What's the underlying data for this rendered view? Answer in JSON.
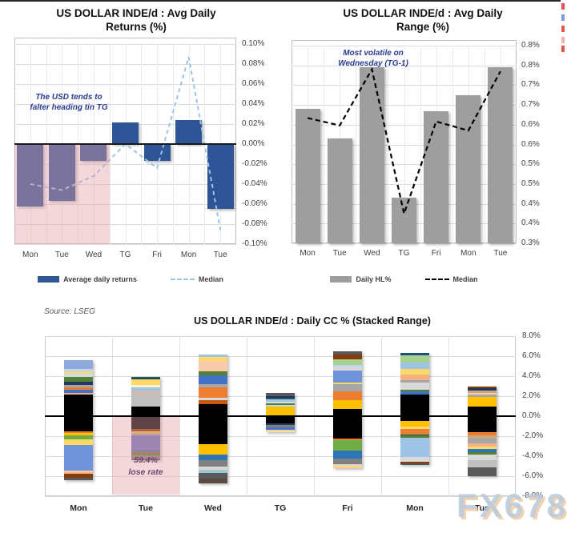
{
  "page": {
    "source_note": "Source: LSEG",
    "watermark": "FX678"
  },
  "chart_data": [
    {
      "id": "avg-daily-returns",
      "type": "bar",
      "title": "US DOLLAR INDE/d : Avg Daily Returns (%)",
      "title_lines": [
        "US DOLLAR INDE/d : Avg Daily",
        "Returns (%)"
      ],
      "annotation_lines": [
        "The USD tends to",
        "falter heading tin TG"
      ],
      "categories": [
        "Mon",
        "Tue",
        "Wed",
        "TG",
        "Fri",
        "Mon",
        "Tue"
      ],
      "series": [
        {
          "name": "Average daily returns",
          "type": "bar",
          "values": [
            -0.062,
            -0.057,
            -0.017,
            0.022,
            -0.017,
            0.024,
            -0.065
          ]
        },
        {
          "name": "Median",
          "type": "line",
          "values": [
            -0.04,
            -0.046,
            -0.032,
            0.0,
            -0.024,
            0.087,
            -0.086
          ]
        }
      ],
      "ylim": [
        -0.1,
        0.1
      ],
      "ytick_labels": [
        "0.10%",
        "0.08%",
        "0.06%",
        "0.04%",
        "0.02%",
        "0.00%",
        "-0.02%",
        "-0.04%",
        "-0.06%",
        "-0.08%",
        "-0.10%"
      ],
      "colors": {
        "bar": "#2F5597",
        "line": "#9DC3E6",
        "highlight": "#F2DCDB",
        "annotation": "#2B3C92"
      },
      "highlight_region": {
        "categories": [
          "Mon",
          "Tue",
          "Wed"
        ],
        "below_zero": true
      },
      "legend_position": "bottom"
    },
    {
      "id": "avg-daily-range",
      "type": "bar",
      "title": "US DOLLAR INDE/d : Avg Daily Range (%)",
      "title_lines": [
        "US DOLLAR INDE/d : Avg Daily",
        "Range (%)"
      ],
      "annotation_lines": [
        "Most volatile on",
        "Wednesday (TG-1)"
      ],
      "categories": [
        "Mon",
        "Tue",
        "Wed",
        "TG",
        "Fri",
        "Mon",
        "Tue"
      ],
      "series": [
        {
          "name": "Daily HL%",
          "type": "bar",
          "values": [
            0.64,
            0.565,
            0.745,
            0.415,
            0.635,
            0.675,
            0.745
          ]
        },
        {
          "name": "Median",
          "type": "line",
          "values": [
            0.617,
            0.598,
            0.74,
            0.375,
            0.608,
            0.585,
            0.735
          ]
        }
      ],
      "ylim": [
        0.3,
        0.8
      ],
      "ytick_labels": [
        "0.8%",
        "0.8%",
        "0.7%",
        "0.7%",
        "0.6%",
        "0.6%",
        "0.5%",
        "0.5%",
        "0.4%",
        "0.4%",
        "0.3%"
      ],
      "colors": {
        "bar": "#9E9E9E",
        "line": "#000000",
        "annotation": "#2B3C92"
      },
      "legend_position": "bottom"
    },
    {
      "id": "daily-cc-stacked",
      "type": "stacked-bar",
      "title": "US DOLLAR INDE/d : Daily CC % (Stacked Range)",
      "annotation_lines": [
        "59.4%",
        "lose rate"
      ],
      "categories": [
        "Mon",
        "Tue",
        "Wed",
        "TG",
        "Fri",
        "Mon",
        "Tue"
      ],
      "ylim": [
        -8,
        8
      ],
      "ytick_labels": [
        "8.0%",
        "6.0%",
        "4.0%",
        "2.0%",
        "0.0%",
        "-2.0%",
        "-4.0%",
        "-6.0%",
        "-8.0%"
      ],
      "highlight": {
        "category": "Tue",
        "color": "#F2DCDB",
        "text_color": "#70486A"
      },
      "bars": [
        {
          "label": "Mon",
          "pos": [
            [
              "#8EA9DB",
              0.85
            ],
            [
              "#BDD7EE",
              0.25
            ],
            [
              "#FFD966",
              0.2
            ],
            [
              "#D9D9D9",
              0.35
            ],
            [
              "#548235",
              0.5
            ],
            [
              "#203864",
              0.3
            ],
            [
              "#A6A6A6",
              0.25
            ],
            [
              "#ED7D31",
              0.25
            ],
            [
              "#4472C4",
              0.3
            ],
            [
              "#F4B183",
              0.15
            ],
            [
              "#000000",
              2.2
            ]
          ],
          "neg": [
            [
              "#000000",
              1.5
            ],
            [
              "#ED7D31",
              0.2
            ],
            [
              "#FFC000",
              0.2
            ],
            [
              "#70AD47",
              0.45
            ],
            [
              "#FFD966",
              0.55
            ],
            [
              "#7094DB",
              2.5
            ],
            [
              "#F8CBAD",
              0.2
            ],
            [
              "#F4B183",
              0.15
            ],
            [
              "#843C0C",
              0.4
            ],
            [
              "#595959",
              0.25
            ]
          ]
        },
        {
          "label": "Tue",
          "pos": [
            [
              "#1F5C5C",
              0.15
            ],
            [
              "#203864",
              0.1
            ],
            [
              "#FFD966",
              0.55
            ],
            [
              "#FFF2CC",
              0.2
            ],
            [
              "#9DC3E6",
              0.45
            ],
            [
              "#F4B183",
              0.15
            ],
            [
              "#BFBFBF",
              1.3
            ],
            [
              "#000000",
              1.0
            ]
          ],
          "neg": [
            [
              "#000000",
              1.3
            ],
            [
              "#843C0C",
              0.25
            ],
            [
              "#FFC000",
              0.15
            ],
            [
              "#A6A6A6",
              0.2
            ],
            [
              "#6974B8",
              1.45
            ],
            [
              "#4472C4",
              0.2
            ],
            [
              "#846A45",
              0.2
            ],
            [
              "#548235",
              0.2
            ],
            [
              "#808080",
              0.25
            ],
            [
              "#595959",
              0.2
            ]
          ]
        },
        {
          "label": "Wed",
          "pos": [
            [
              "#9DC3E6",
              0.3
            ],
            [
              "#FFD966",
              0.4
            ],
            [
              "#F8CBAD",
              1.0
            ],
            [
              "#548235",
              0.45
            ],
            [
              "#4472C4",
              0.85
            ],
            [
              "#A6A6A6",
              0.35
            ],
            [
              "#ED7D31",
              1.0
            ],
            [
              "#D9D9D9",
              0.25
            ],
            [
              "#C55A11",
              0.4
            ],
            [
              "#000000",
              1.2
            ]
          ],
          "neg": [
            [
              "#000000",
              2.8
            ],
            [
              "#FFC000",
              1.0
            ],
            [
              "#2E75B6",
              0.6
            ],
            [
              "#808080",
              0.65
            ],
            [
              "#D9D9D9",
              0.3
            ],
            [
              "#A9D18E",
              0.1
            ],
            [
              "#9DC3E6",
              0.25
            ],
            [
              "#595959",
              0.5
            ],
            [
              "#5B4A42",
              0.5
            ]
          ]
        },
        {
          "label": "TG",
          "pos": [
            [
              "#595959",
              0.3
            ],
            [
              "#203864",
              0.2
            ],
            [
              "#2E7573",
              0.15
            ],
            [
              "#9DC3E6",
              0.2
            ],
            [
              "#D9D9D9",
              0.15
            ],
            [
              "#548235",
              0.15
            ],
            [
              "#BDD7EE",
              0.2
            ],
            [
              "#FFC000",
              0.95
            ]
          ],
          "neg": [
            [
              "#000000",
              0.7
            ],
            [
              "#203864",
              0.2
            ],
            [
              "#808080",
              0.2
            ],
            [
              "#4472C4",
              0.25
            ],
            [
              "#F8CBAD",
              0.15
            ],
            [
              "#FFE699",
              0.1
            ]
          ]
        },
        {
          "label": "Fri",
          "pos": [
            [
              "#595959",
              0.35
            ],
            [
              "#843C0C",
              0.5
            ],
            [
              "#A9D18E",
              0.5
            ],
            [
              "#BDD7EE",
              0.3
            ],
            [
              "#D9D9D9",
              0.3
            ],
            [
              "#7094DB",
              1.15
            ],
            [
              "#FFD966",
              0.2
            ],
            [
              "#A6A6A6",
              0.7
            ],
            [
              "#ED7D31",
              0.9
            ],
            [
              "#FFC000",
              0.9
            ],
            [
              "#000000",
              0.7
            ]
          ],
          "neg": [
            [
              "#000000",
              2.25
            ],
            [
              "#ED7D31",
              0.15
            ],
            [
              "#70AD47",
              1.0
            ],
            [
              "#2E75B6",
              0.85
            ],
            [
              "#808080",
              0.55
            ],
            [
              "#D9D9D9",
              0.15
            ],
            [
              "#FFD966",
              0.15
            ],
            [
              "#F8CBAD",
              0.1
            ]
          ]
        },
        {
          "label": "Mon",
          "pos": [
            [
              "#1F4E79",
              0.2
            ],
            [
              "#A9D18E",
              0.7
            ],
            [
              "#9DC3E6",
              0.7
            ],
            [
              "#FFD966",
              0.55
            ],
            [
              "#F4B183",
              0.55
            ],
            [
              "#A6A6A6",
              0.25
            ],
            [
              "#D9D9D9",
              0.7
            ],
            [
              "#548235",
              0.2
            ],
            [
              "#4472C4",
              0.25
            ],
            [
              "#000000",
              2.2
            ]
          ],
          "neg": [
            [
              "#000000",
              0.5
            ],
            [
              "#FFC000",
              0.55
            ],
            [
              "#FFD966",
              0.2
            ],
            [
              "#ED7D31",
              0.55
            ],
            [
              "#1F5C5C",
              0.15
            ],
            [
              "#548235",
              0.2
            ],
            [
              "#9DC3E6",
              1.9
            ],
            [
              "#D9D9D9",
              0.5
            ],
            [
              "#843C0C",
              0.2
            ],
            [
              "#595959",
              0.15
            ]
          ]
        },
        {
          "label": "Tue",
          "pos": [
            [
              "#843C0C",
              0.2
            ],
            [
              "#203864",
              0.2
            ],
            [
              "#C9A87C",
              0.25
            ],
            [
              "#F8CBAD",
              0.2
            ],
            [
              "#A6A6A6",
              0.25
            ],
            [
              "#FFC000",
              0.9
            ],
            [
              "#000000",
              1.0
            ]
          ],
          "neg": [
            [
              "#000000",
              1.6
            ],
            [
              "#ED7D31",
              0.3
            ],
            [
              "#C9A87C",
              0.35
            ],
            [
              "#A6A6A6",
              0.5
            ],
            [
              "#F4B183",
              0.25
            ],
            [
              "#FFD966",
              0.3
            ],
            [
              "#2E75B6",
              0.3
            ],
            [
              "#548235",
              0.25
            ],
            [
              "#D9D9D9",
              0.55
            ],
            [
              "#BFBFBF",
              0.75
            ],
            [
              "#595959",
              0.85
            ]
          ]
        }
      ]
    }
  ]
}
